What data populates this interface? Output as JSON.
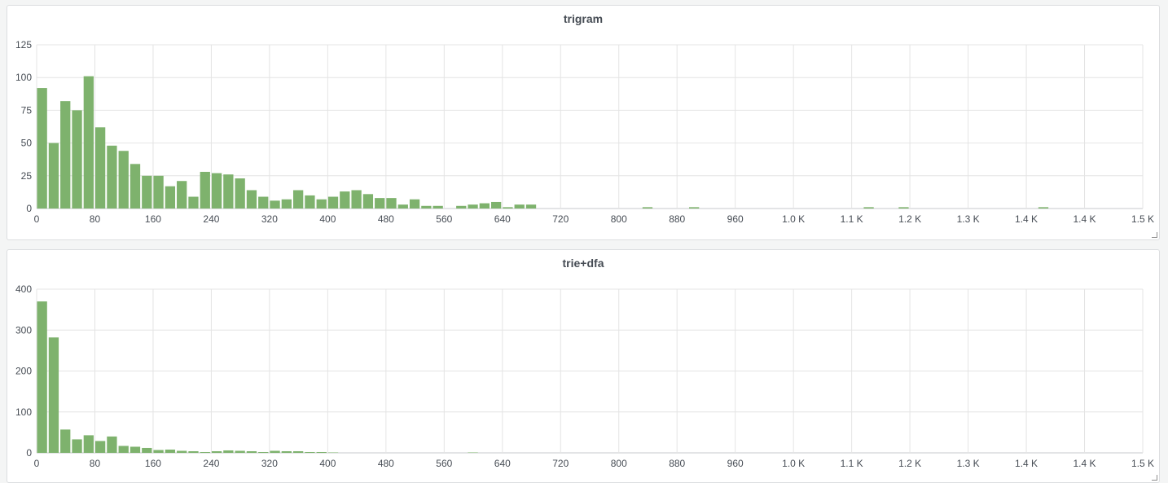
{
  "colors": {
    "bar": "#7eb26d",
    "grid": "#e4e4e4",
    "axis": "#c7c9cc",
    "text": "#464c54"
  },
  "chart_data": [
    {
      "type": "bar",
      "title": "trigram",
      "xlabel": "",
      "ylabel": "",
      "bin_width": 16,
      "xlim": [
        0,
        1520
      ],
      "ylim": [
        0,
        125
      ],
      "y_ticks": [
        0,
        25,
        50,
        75,
        100,
        125
      ],
      "x_ticks": [
        {
          "v": 0,
          "label": "0"
        },
        {
          "v": 80,
          "label": "80"
        },
        {
          "v": 160,
          "label": "160"
        },
        {
          "v": 240,
          "label": "240"
        },
        {
          "v": 320,
          "label": "320"
        },
        {
          "v": 400,
          "label": "400"
        },
        {
          "v": 480,
          "label": "480"
        },
        {
          "v": 560,
          "label": "560"
        },
        {
          "v": 640,
          "label": "640"
        },
        {
          "v": 720,
          "label": "720"
        },
        {
          "v": 800,
          "label": "800"
        },
        {
          "v": 880,
          "label": "880"
        },
        {
          "v": 960,
          "label": "960"
        },
        {
          "v": 1040,
          "label": "1.0 K"
        },
        {
          "v": 1120,
          "label": "1.1 K"
        },
        {
          "v": 1200,
          "label": "1.2 K"
        },
        {
          "v": 1280,
          "label": "1.3 K"
        },
        {
          "v": 1360,
          "label": "1.4 K"
        },
        {
          "v": 1440,
          "label": "1.4 K"
        },
        {
          "v": 1520,
          "label": "1.5 K"
        }
      ],
      "grid": true,
      "legend": "none",
      "values": [
        92,
        50,
        82,
        75,
        101,
        62,
        48,
        44,
        34,
        25,
        25,
        17,
        21,
        9,
        28,
        27,
        26,
        23,
        14,
        9,
        6,
        7,
        14,
        10,
        7,
        9,
        13,
        14,
        11,
        8,
        8,
        3,
        7,
        2,
        2,
        0,
        2,
        3,
        4,
        5,
        1,
        3,
        3,
        0,
        0,
        0,
        0,
        0,
        0,
        0,
        0,
        0,
        1,
        0,
        0,
        0,
        1,
        0,
        0,
        0,
        0,
        0,
        0,
        0,
        0,
        0,
        0,
        0,
        0,
        0,
        0,
        1,
        0,
        0,
        1,
        0,
        0,
        0,
        0,
        0,
        0,
        0,
        0,
        0,
        0,
        0,
        1,
        0,
        0,
        0,
        0,
        0,
        0,
        0,
        0
      ]
    },
    {
      "type": "bar",
      "title": "trie+dfa",
      "xlabel": "",
      "ylabel": "",
      "bin_width": 16,
      "xlim": [
        0,
        1520
      ],
      "ylim": [
        0,
        400
      ],
      "y_ticks": [
        0,
        100,
        200,
        300,
        400
      ],
      "x_ticks": [
        {
          "v": 0,
          "label": "0"
        },
        {
          "v": 80,
          "label": "80"
        },
        {
          "v": 160,
          "label": "160"
        },
        {
          "v": 240,
          "label": "240"
        },
        {
          "v": 320,
          "label": "320"
        },
        {
          "v": 400,
          "label": "400"
        },
        {
          "v": 480,
          "label": "480"
        },
        {
          "v": 560,
          "label": "560"
        },
        {
          "v": 640,
          "label": "640"
        },
        {
          "v": 720,
          "label": "720"
        },
        {
          "v": 800,
          "label": "800"
        },
        {
          "v": 880,
          "label": "880"
        },
        {
          "v": 960,
          "label": "960"
        },
        {
          "v": 1040,
          "label": "1.0 K"
        },
        {
          "v": 1120,
          "label": "1.1 K"
        },
        {
          "v": 1200,
          "label": "1.2 K"
        },
        {
          "v": 1280,
          "label": "1.3 K"
        },
        {
          "v": 1360,
          "label": "1.4 K"
        },
        {
          "v": 1440,
          "label": "1.4 K"
        },
        {
          "v": 1520,
          "label": "1.5 K"
        }
      ],
      "grid": true,
      "legend": "none",
      "values": [
        370,
        282,
        57,
        33,
        43,
        29,
        40,
        17,
        15,
        12,
        7,
        8,
        5,
        4,
        2,
        4,
        6,
        5,
        4,
        2,
        5,
        4,
        4,
        2,
        2,
        1,
        0,
        0,
        0,
        0,
        0,
        0,
        0,
        0,
        0,
        0,
        0,
        1,
        0,
        0
      ]
    }
  ]
}
